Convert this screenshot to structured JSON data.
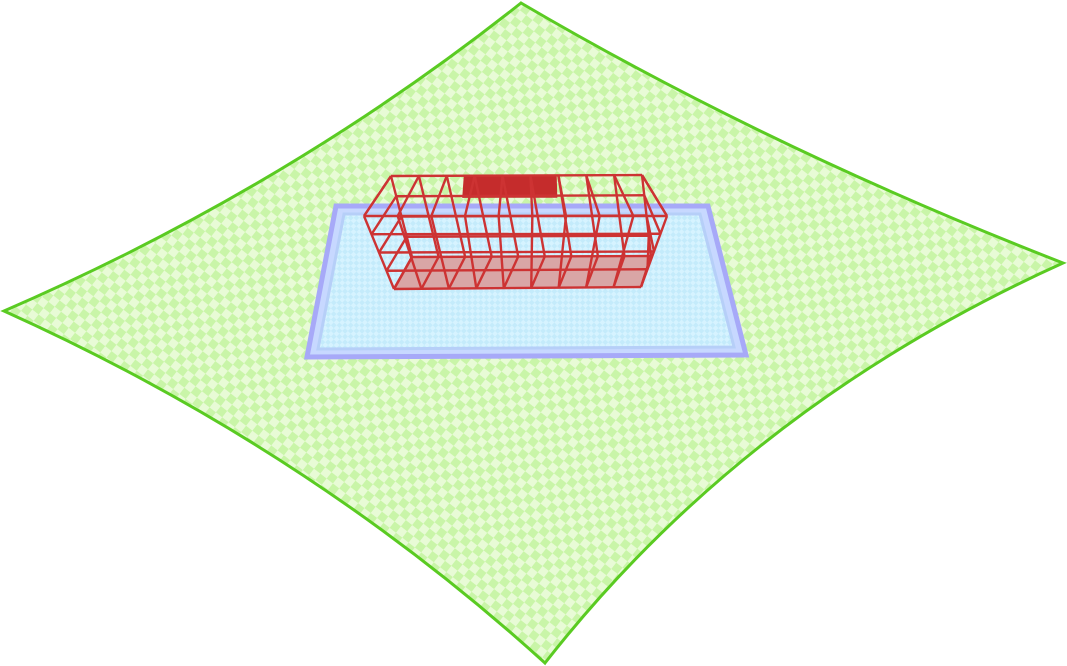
{
  "scene": {
    "ground_surface": {
      "fill": "#e8fbd6",
      "check": "#c9f5a8",
      "stroke": "#5acb22"
    },
    "pool": {
      "fill": "#d6f3ff",
      "check": "#c4ebfb",
      "rim": "#a7a9f8",
      "inner_rim": "#c7d8ff"
    },
    "cage": {
      "stroke": "#cd3333",
      "floor_fill": "#d9a6a6",
      "roof_block_fill": "#c52c2c",
      "columns": 9,
      "rows": 4
    }
  }
}
